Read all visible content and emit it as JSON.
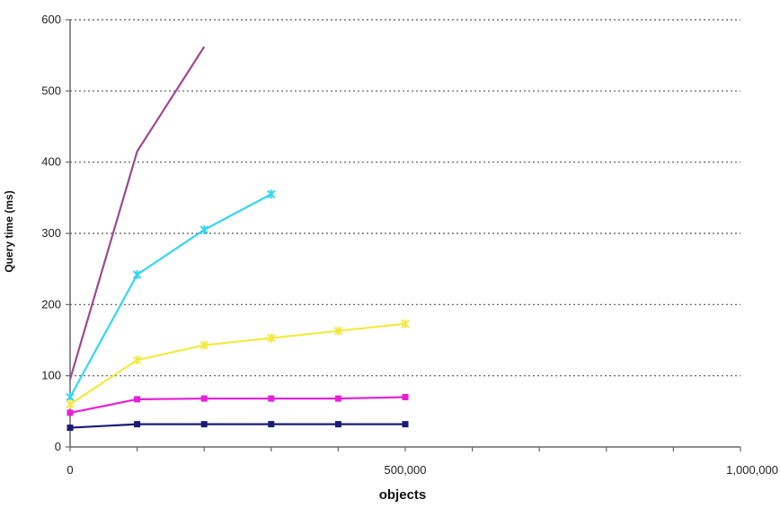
{
  "chart_data": {
    "type": "line",
    "xlabel": "objects",
    "ylabel": "Query time (ms)",
    "xlim": [
      0,
      1000000
    ],
    "ylim": [
      0,
      600
    ],
    "x_ticks": [
      0,
      100000,
      200000,
      300000,
      400000,
      500000,
      600000,
      700000,
      800000,
      900000,
      1000000
    ],
    "x_tick_labels": [
      {
        "value": 0,
        "label": "0"
      },
      {
        "value": 500000,
        "label": "500,000"
      },
      {
        "value": 1000000,
        "label": "1,000,000"
      }
    ],
    "y_ticks": [
      0,
      100,
      200,
      300,
      400,
      500,
      600
    ],
    "y_tick_labels": [
      "0",
      "100",
      "200",
      "300",
      "400",
      "500",
      "600"
    ],
    "grid": "horizontal dotted",
    "series": [
      {
        "color": "#9a4b8f",
        "marker": "none",
        "x": [
          0,
          100000,
          200000
        ],
        "y": [
          95,
          415,
          562
        ]
      },
      {
        "color": "#33d6f0",
        "marker": "asterisk",
        "x": [
          0,
          100000,
          200000,
          300000
        ],
        "y": [
          70,
          242,
          305,
          355
        ]
      },
      {
        "color": "#f2ea40",
        "marker": "asterisk",
        "x": [
          0,
          100000,
          200000,
          300000,
          400000,
          500000
        ],
        "y": [
          60,
          122,
          143,
          153,
          163,
          173
        ]
      },
      {
        "color": "#e81ed8",
        "marker": "square",
        "x": [
          0,
          100000,
          200000,
          300000,
          400000,
          500000
        ],
        "y": [
          48,
          67,
          68,
          68,
          68,
          70
        ]
      },
      {
        "color": "#1a1a78",
        "marker": "square",
        "x": [
          0,
          100000,
          200000,
          300000,
          400000,
          500000
        ],
        "y": [
          27,
          32,
          32,
          32,
          32,
          32
        ]
      }
    ]
  }
}
